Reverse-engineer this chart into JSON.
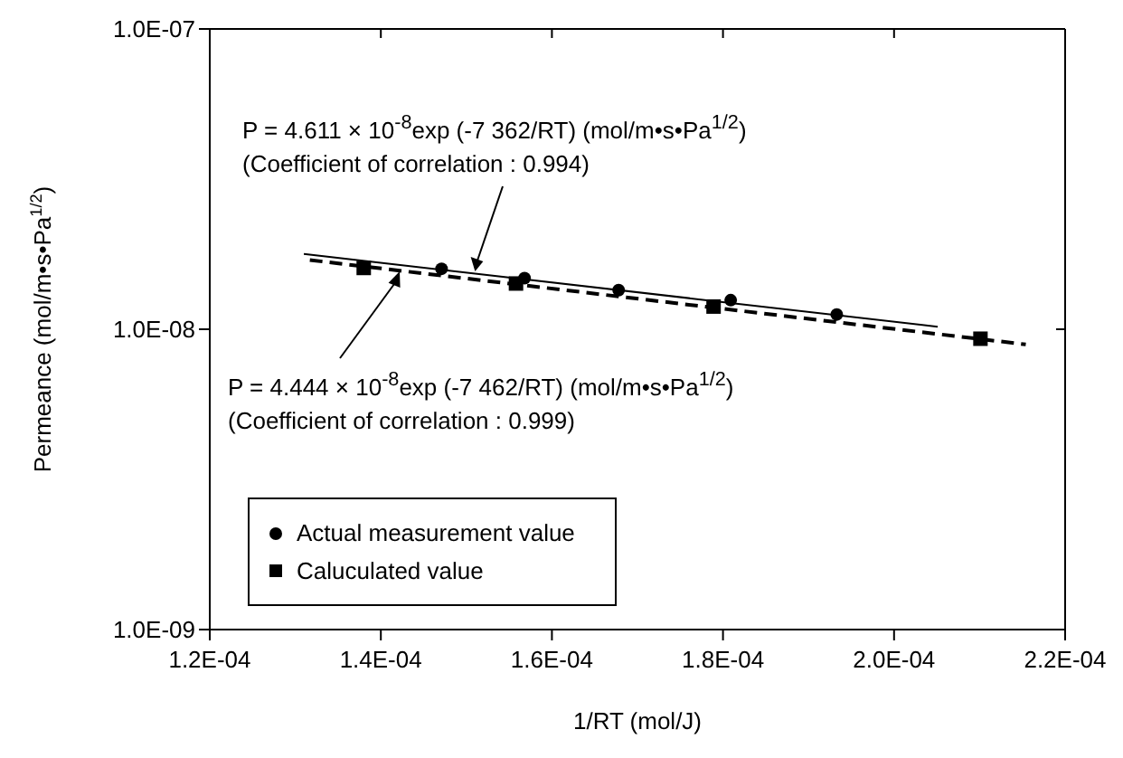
{
  "chart_data": {
    "type": "scatter",
    "xlabel": "1/RT (mol/J)",
    "ylabel": "Permeance (mol/m•s•Pa$^{1/2}$)",
    "xlim": [
      0.00012,
      0.00022
    ],
    "xticks": [
      {
        "value": 0.00012,
        "label": "1.2E-04"
      },
      {
        "value": 0.00014,
        "label": "1.4E-04"
      },
      {
        "value": 0.00016,
        "label": "1.6E-04"
      },
      {
        "value": 0.00018,
        "label": "1.8E-04"
      },
      {
        "value": 0.0002,
        "label": "2.0E-04"
      },
      {
        "value": 0.00022,
        "label": "2.2E-04"
      }
    ],
    "ylim": [
      1e-09,
      1e-07
    ],
    "yticks": [
      {
        "value": 1e-09,
        "label": "1.0E-09"
      },
      {
        "value": 1e-08,
        "label": "1.0E-08"
      },
      {
        "value": 1e-07,
        "label": "1.0E-07"
      }
    ],
    "log": "y",
    "grid": false,
    "legend": "bottom left",
    "series": [
      {
        "name": "Actual measurement value",
        "type": "scatter",
        "marker": "circle",
        "color": "#000000",
        "x": [
          0.0001471,
          0.0001568,
          0.0001678,
          0.0001809,
          0.0001933
        ],
        "values": [
          1.59e-08,
          1.48e-08,
          1.35e-08,
          1.25e-08,
          1.12e-08
        ]
      },
      {
        "name": "Caluculated value",
        "type": "scatter",
        "marker": "square",
        "color": "#000000",
        "x": [
          0.000138,
          0.0001558,
          0.0001789,
          0.0002101
        ],
        "values": [
          1.6e-08,
          1.42e-08,
          1.19e-08,
          9.3e-09
        ]
      },
      {
        "type": "line",
        "marker": "none",
        "line_style": "solid",
        "color": "#000000",
        "x": [
          0.000131,
          0.0002051
        ],
        "values": [
          1.78e-08,
          1.02e-08
        ]
      },
      {
        "type": "line",
        "marker": "none",
        "line_style": "dashed",
        "color": "#000000",
        "x": [
          0.0001317,
          0.0002154
        ],
        "values": [
          1.7e-08,
          8.9e-09
        ]
      }
    ],
    "annotations": [
      "P = 4.611 × 10$^{-8}$exp (-7 362/RT) (mol/m•s•Pa$^{1/2}$)\n(Coefficient of correlation : 0.994)",
      "P = 4.444 × 10$^{-8}$exp (-7 462/RT) (mol/m•s•Pa$^{1/2}$)\n(Coefficient of correlation : 0.999)"
    ]
  }
}
